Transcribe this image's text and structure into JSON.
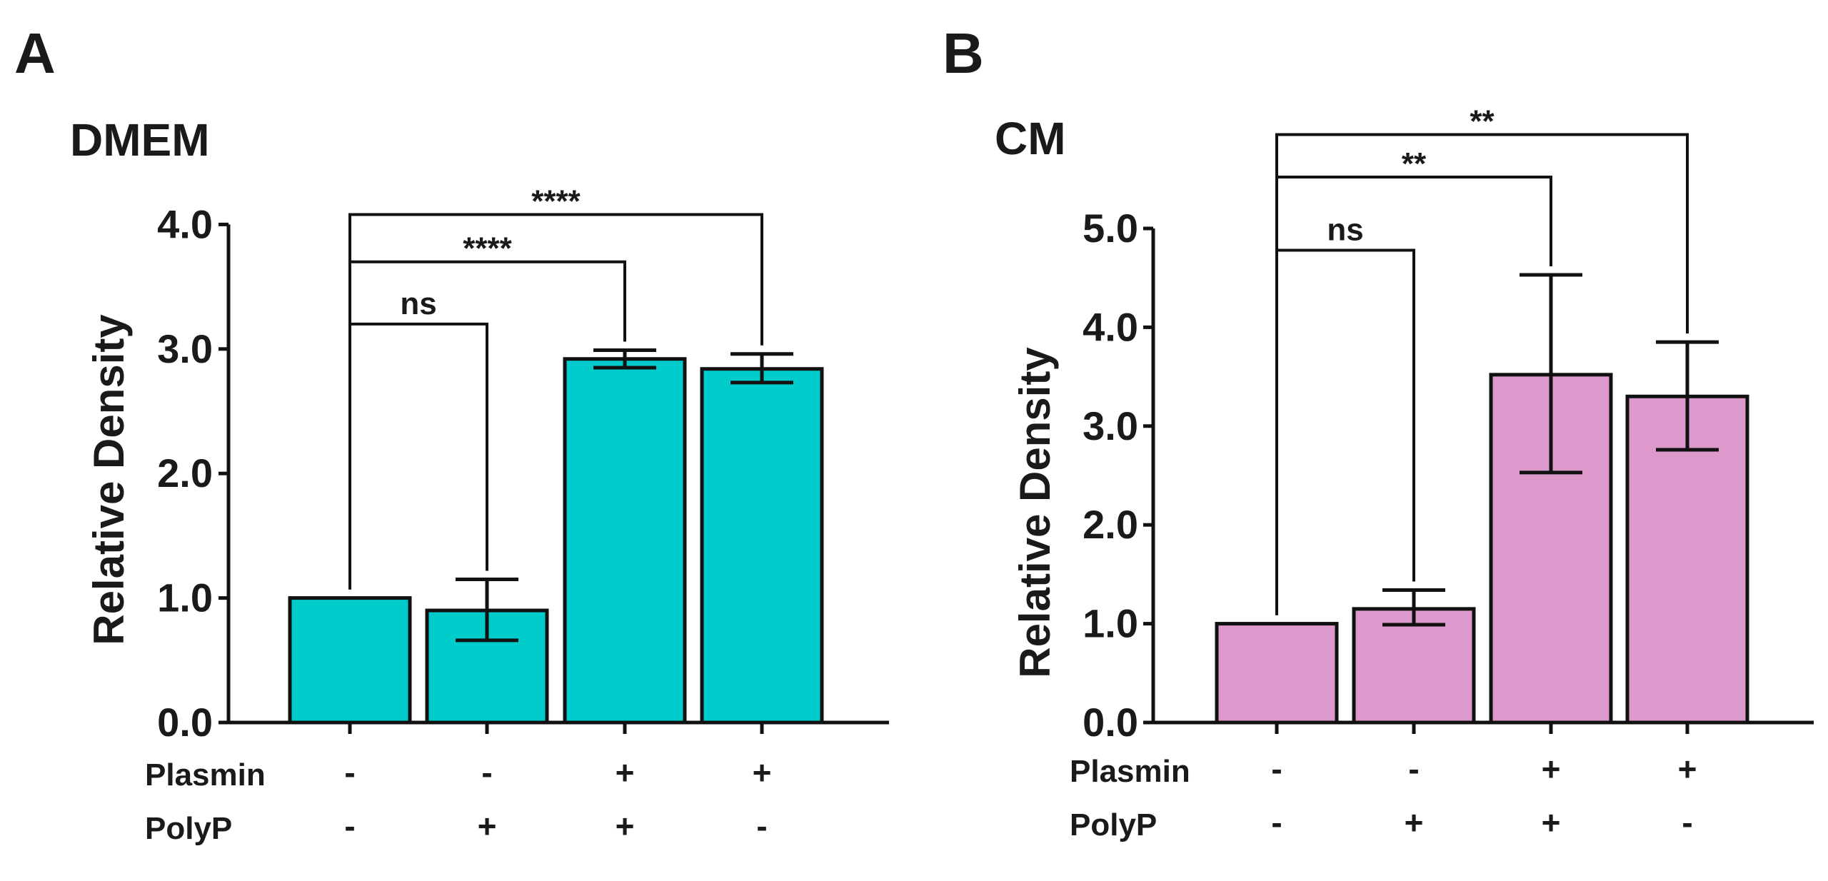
{
  "chart_data": [
    {
      "type": "bar",
      "panel": "A",
      "title": "DMEM",
      "ylabel": "Relative Density",
      "ylim": [
        0,
        4
      ],
      "yticks": [
        "0.0",
        "1.0",
        "2.0",
        "3.0",
        "4.0"
      ],
      "ytick_values": [
        0,
        1,
        2,
        3,
        4
      ],
      "color": "#00CCCC",
      "values": [
        1.0,
        0.9,
        2.92,
        2.84
      ],
      "errors": [
        [
          1.0,
          1.0
        ],
        [
          0.66,
          1.15
        ],
        [
          2.85,
          2.99
        ],
        [
          2.73,
          2.96
        ]
      ],
      "conditions": [
        {
          "label": "Plasmin",
          "values": [
            "-",
            "-",
            "+",
            "+"
          ]
        },
        {
          "label": "PolyP",
          "values": [
            "-",
            "+",
            "+",
            "-"
          ]
        }
      ],
      "comparisons": [
        {
          "from": 0,
          "to": 1,
          "label": "ns",
          "level": 3.2
        },
        {
          "from": 0,
          "to": 2,
          "label": "****",
          "level": 3.7
        },
        {
          "from": 0,
          "to": 3,
          "label": "****",
          "level": 4.08
        }
      ]
    },
    {
      "type": "bar",
      "panel": "B",
      "title": "CM",
      "ylabel": "Relative Density",
      "ylim": [
        0,
        5
      ],
      "yticks": [
        "0.0",
        "1.0",
        "2.0",
        "3.0",
        "4.0",
        "5.0"
      ],
      "ytick_values": [
        0,
        1,
        2,
        3,
        4,
        5
      ],
      "color": "#DD99CC",
      "values": [
        1.0,
        1.15,
        3.52,
        3.3
      ],
      "errors": [
        [
          1.0,
          1.0
        ],
        [
          0.99,
          1.34
        ],
        [
          2.53,
          4.53
        ],
        [
          2.76,
          3.85
        ]
      ],
      "conditions": [
        {
          "label": "Plasmin",
          "values": [
            "-",
            "-",
            "+",
            "+"
          ]
        },
        {
          "label": "PolyP",
          "values": [
            "-",
            "+",
            "+",
            "-"
          ]
        }
      ],
      "comparisons": [
        {
          "from": 0,
          "to": 1,
          "label": "ns",
          "level": 4.78
        },
        {
          "from": 0,
          "to": 2,
          "label": "**",
          "level": 5.52
        },
        {
          "from": 0,
          "to": 3,
          "label": "**",
          "level": 5.95
        }
      ]
    }
  ]
}
